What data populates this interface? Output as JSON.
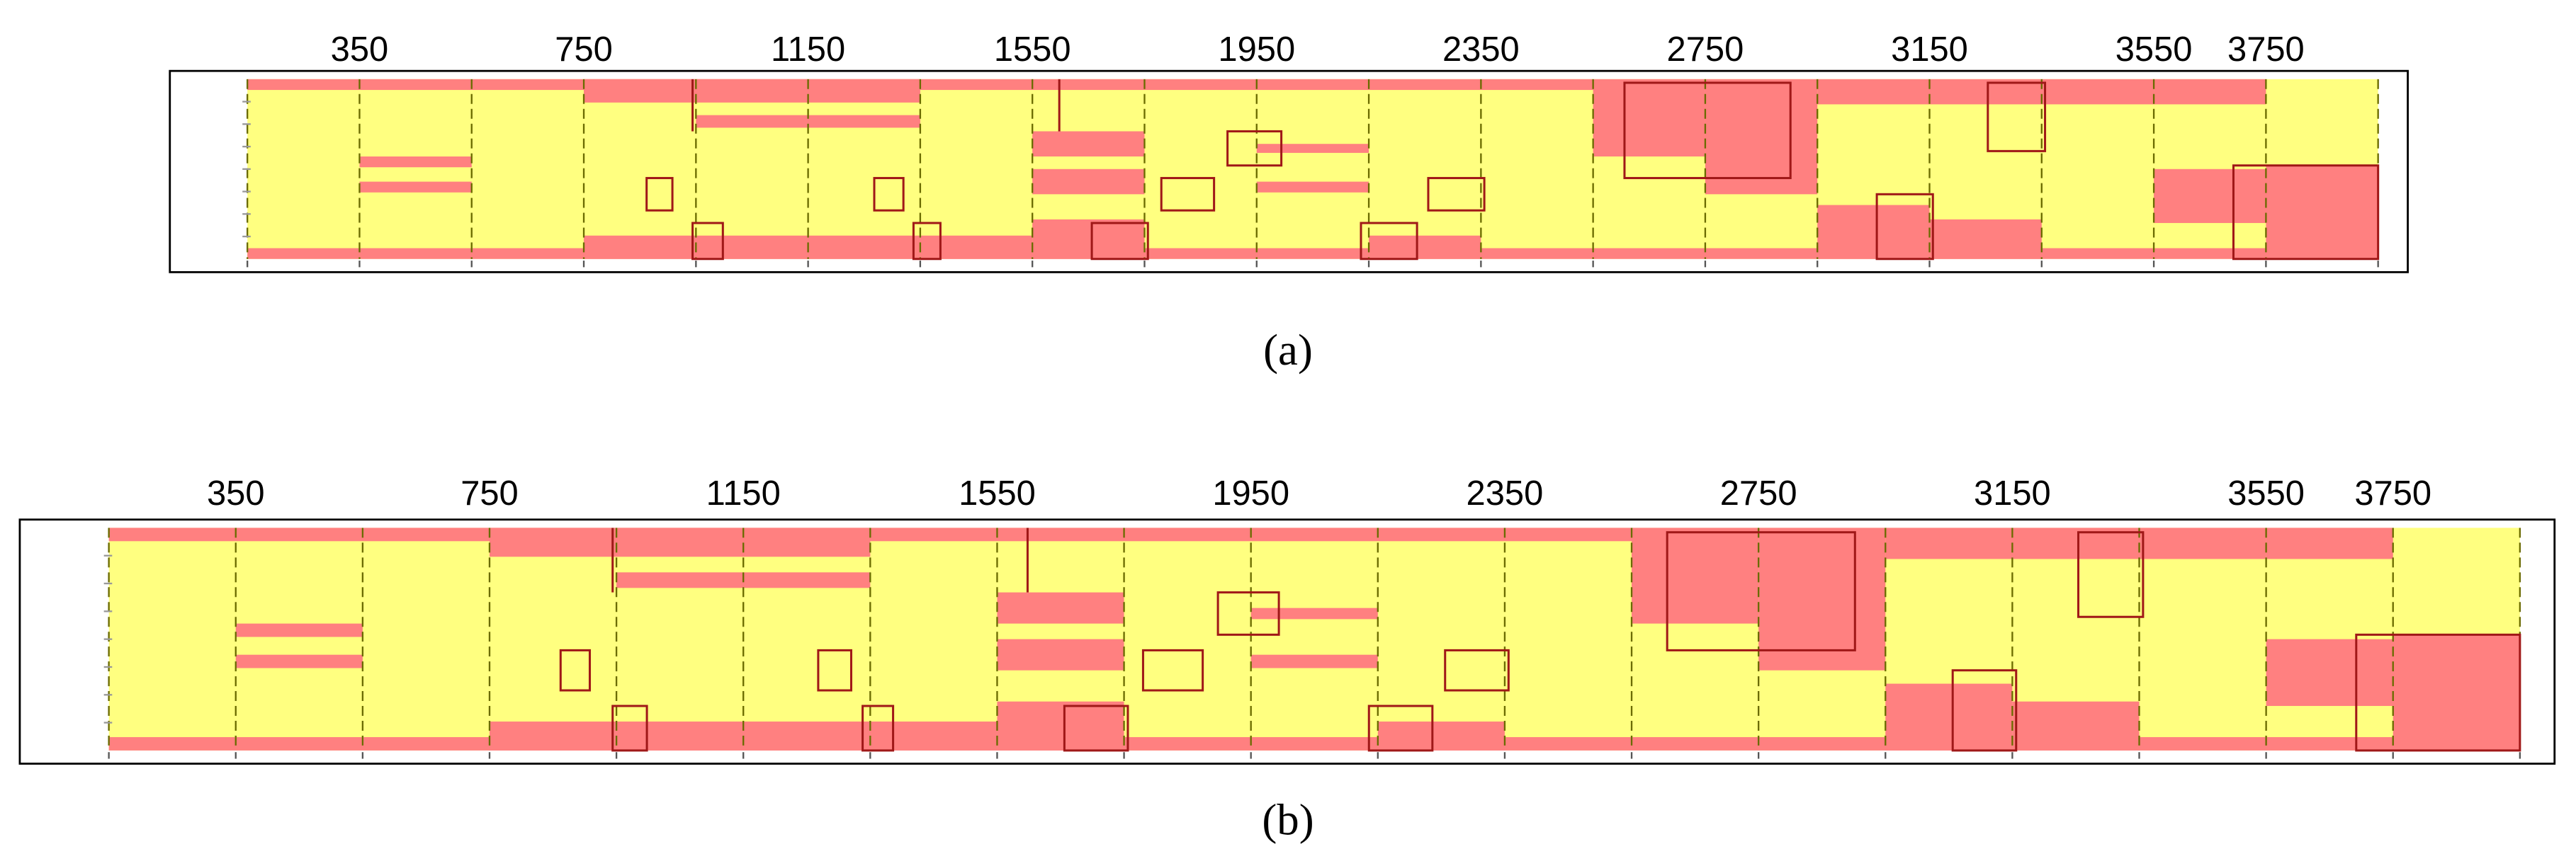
{
  "panels": [
    {
      "label": "(a)",
      "ticks": [
        350,
        750,
        1150,
        1550,
        1950,
        2350,
        2750,
        3150,
        3550,
        3750
      ]
    },
    {
      "label": "(b)",
      "ticks": [
        350,
        750,
        1150,
        1550,
        1950,
        2350,
        2750,
        3150,
        3550,
        3750
      ]
    }
  ]
}
